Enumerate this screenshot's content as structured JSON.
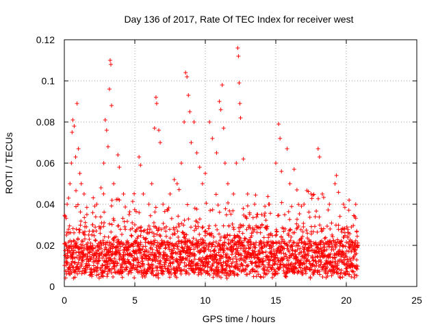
{
  "chart_data": {
    "type": "scatter",
    "title": "Day 136 of 2017, Rate Of TEC Index for receiver west",
    "xlabel": "GPS time / hours",
    "ylabel": "ROTI / TECUs",
    "xlim": [
      0,
      25
    ],
    "ylim": [
      0,
      0.12
    ],
    "xticks": [
      "0",
      "5",
      "10",
      "15",
      "20",
      "25"
    ],
    "yticks": [
      "0",
      "0.02",
      "0.04",
      "0.06",
      "0.08",
      "0.1",
      "0.12"
    ],
    "grid": true,
    "marker": "+",
    "color": "#ff0000",
    "series": [
      {
        "points": [
          [
            0.1,
            0.012
          ],
          [
            0.15,
            0.025
          ],
          [
            0.2,
            0.04
          ],
          [
            0.3,
            0.043
          ],
          [
            0.4,
            0.05
          ],
          [
            0.5,
            0.06
          ],
          [
            0.55,
            0.075
          ],
          [
            0.6,
            0.081
          ],
          [
            0.7,
            0.078
          ],
          [
            0.8,
            0.063
          ],
          [
            0.9,
            0.089
          ],
          [
            1.0,
            0.067
          ],
          [
            1.1,
            0.055
          ],
          [
            1.2,
            0.05
          ],
          [
            1.4,
            0.045
          ],
          [
            1.6,
            0.035
          ],
          [
            2.0,
            0.03
          ],
          [
            2.3,
            0.04
          ],
          [
            2.6,
            0.048
          ],
          [
            2.8,
            0.06
          ],
          [
            2.9,
            0.081
          ],
          [
            3.0,
            0.076
          ],
          [
            3.1,
            0.068
          ],
          [
            3.2,
            0.096
          ],
          [
            3.25,
            0.11
          ],
          [
            3.3,
            0.108
          ],
          [
            3.35,
            0.088
          ],
          [
            3.5,
            0.05
          ],
          [
            3.8,
            0.064
          ],
          [
            3.9,
            0.058
          ],
          [
            4.2,
            0.045
          ],
          [
            4.6,
            0.035
          ],
          [
            5.0,
            0.03
          ],
          [
            5.3,
            0.063
          ],
          [
            5.4,
            0.059
          ],
          [
            5.6,
            0.045
          ],
          [
            6.0,
            0.04
          ],
          [
            6.2,
            0.05
          ],
          [
            6.4,
            0.077
          ],
          [
            6.5,
            0.092
          ],
          [
            6.55,
            0.089
          ],
          [
            6.7,
            0.076
          ],
          [
            6.8,
            0.07
          ],
          [
            7.0,
            0.04
          ],
          [
            7.5,
            0.045
          ],
          [
            7.8,
            0.052
          ],
          [
            8.0,
            0.05
          ],
          [
            8.3,
            0.06
          ],
          [
            8.5,
            0.08
          ],
          [
            8.6,
            0.104
          ],
          [
            8.7,
            0.102
          ],
          [
            8.8,
            0.093
          ],
          [
            8.9,
            0.085
          ],
          [
            9.0,
            0.07
          ],
          [
            9.2,
            0.08
          ],
          [
            9.4,
            0.065
          ],
          [
            9.6,
            0.058
          ],
          [
            9.8,
            0.05
          ],
          [
            10.0,
            0.055
          ],
          [
            10.3,
            0.08
          ],
          [
            10.5,
            0.072
          ],
          [
            10.8,
            0.065
          ],
          [
            11.0,
            0.09
          ],
          [
            11.1,
            0.086
          ],
          [
            11.2,
            0.098
          ],
          [
            11.3,
            0.077
          ],
          [
            11.4,
            0.06
          ],
          [
            11.6,
            0.05
          ],
          [
            12.0,
            0.045
          ],
          [
            12.2,
            0.06
          ],
          [
            12.3,
            0.116
          ],
          [
            12.35,
            0.112
          ],
          [
            12.4,
            0.099
          ],
          [
            12.45,
            0.089
          ],
          [
            12.5,
            0.082
          ],
          [
            12.7,
            0.062
          ],
          [
            13.0,
            0.045
          ],
          [
            13.5,
            0.04
          ],
          [
            14.0,
            0.035
          ],
          [
            14.5,
            0.04
          ],
          [
            15.0,
            0.06
          ],
          [
            15.2,
            0.079
          ],
          [
            15.3,
            0.072
          ],
          [
            15.4,
            0.056
          ],
          [
            15.8,
            0.067
          ],
          [
            16.0,
            0.05
          ],
          [
            16.3,
            0.057
          ],
          [
            16.5,
            0.047
          ],
          [
            17.0,
            0.04
          ],
          [
            17.5,
            0.045
          ],
          [
            18.0,
            0.067
          ],
          [
            18.1,
            0.063
          ],
          [
            18.3,
            0.045
          ],
          [
            18.8,
            0.04
          ],
          [
            19.2,
            0.05
          ],
          [
            19.3,
            0.054
          ],
          [
            19.8,
            0.04
          ],
          [
            20.2,
            0.042
          ],
          [
            20.6,
            0.034
          ],
          [
            20.8,
            0.02
          ]
        ]
      }
    ]
  }
}
